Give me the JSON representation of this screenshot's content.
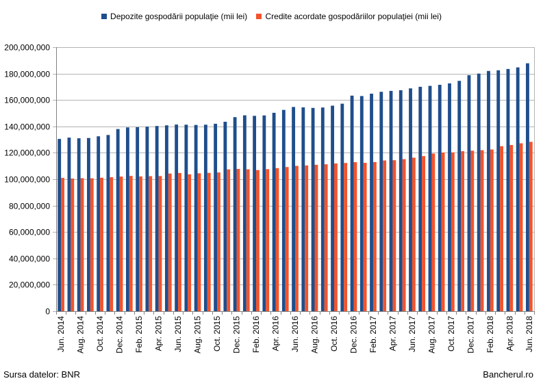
{
  "legend": {
    "deposits_label": "Depozite gospodării populaţie (mii lei)",
    "credits_label": "Credite acordate gospodăriilor populaţiei (mii lei)"
  },
  "footer": {
    "source": "Sursa datelor: BNR",
    "brand": "Bancherul.ro"
  },
  "colors": {
    "deposits": "#1F4E8C",
    "credits": "#F2542D",
    "grid": "#B3B3B3",
    "axis": "#808080"
  },
  "chart_data": {
    "type": "bar",
    "categories": [
      "Jun. 2014",
      "Jul. 2014",
      "Aug. 2014",
      "Sep. 2014",
      "Oct. 2014",
      "Nov. 2014",
      "Dec. 2014",
      "Jan. 2015",
      "Feb. 2015",
      "Mar. 2015",
      "Apr. 2015",
      "May 2015",
      "Jun. 2015",
      "Jul. 2015",
      "Aug. 2015",
      "Sep. 2015",
      "Oct. 2015",
      "Nov. 2015",
      "Dec. 2015",
      "Jan. 2016",
      "Feb. 2016",
      "Mar. 2016",
      "Apr. 2016",
      "May 2016",
      "Jun. 2016",
      "Jul. 2016",
      "Aug. 2016",
      "Sep. 2016",
      "Oct. 2016",
      "Nov. 2016",
      "Dec. 2016",
      "Jan. 2017",
      "Feb. 2017",
      "Mar. 2017",
      "Apr. 2017",
      "May 2017",
      "Jun. 2017",
      "Jul. 2017",
      "Aug. 2017",
      "Sep. 2017",
      "Oct. 2017",
      "Nov. 2017",
      "Dec. 2017",
      "Jan. 2018",
      "Feb. 2018",
      "Mar. 2018",
      "Apr. 2018",
      "May 2018",
      "Jun. 2018"
    ],
    "tick_labels": [
      "Jun. 2014",
      "Aug. 2014",
      "Oct. 2014",
      "Dec. 2014",
      "Feb. 2015",
      "Apr. 2015",
      "Jun. 2015",
      "Aug. 2015",
      "Oct. 2015",
      "Dec. 2015",
      "Feb. 2016",
      "Apr. 2016",
      "Jun. 2016",
      "Aug. 2016",
      "Oct. 2016",
      "Dec. 2016",
      "Feb. 2017",
      "Apr. 2017",
      "Jun. 2017",
      "Aug. 2017",
      "Oct. 2017",
      "Dec. 2017",
      "Feb. 2018",
      "Apr. 2018",
      "Jun. 2018"
    ],
    "series": [
      {
        "name": "Depozite gospodării populaţie (mii lei)",
        "values": [
          130500000,
          131500000,
          131000000,
          131200000,
          132500000,
          133500000,
          138000000,
          139200000,
          139400000,
          139800000,
          140300000,
          140800000,
          141400000,
          141300000,
          141100000,
          141300000,
          142000000,
          143500000,
          147000000,
          148400000,
          148000000,
          148300000,
          150300000,
          152500000,
          154700000,
          154400000,
          154000000,
          154300000,
          155700000,
          157200000,
          163300000,
          163000000,
          164800000,
          166200000,
          166900000,
          167400000,
          168800000,
          170000000,
          170700000,
          171500000,
          172600000,
          174500000,
          178800000,
          180000000,
          182000000,
          182500000,
          183500000,
          184700000,
          187800000
        ]
      },
      {
        "name": "Credite acordate gospodăriilor populaţiei (mii lei)",
        "values": [
          101000000,
          100500000,
          100800000,
          100700000,
          101100000,
          101500000,
          102000000,
          102500000,
          102100000,
          102300000,
          102400000,
          104300000,
          104700000,
          103700000,
          104500000,
          104800000,
          105100000,
          107400000,
          107800000,
          107500000,
          106900000,
          107600000,
          108400000,
          109200000,
          110100000,
          110400000,
          110900000,
          111300000,
          111900000,
          112300000,
          112900000,
          112400000,
          113000000,
          114200000,
          114400000,
          115200000,
          116300000,
          117500000,
          119400000,
          120200000,
          120300000,
          121200000,
          121600000,
          122000000,
          122500000,
          125000000,
          125900000,
          127200000,
          128300000
        ]
      }
    ],
    "ylim": [
      0,
      200000000
    ],
    "yticks": [
      0,
      20000000,
      40000000,
      60000000,
      80000000,
      100000000,
      120000000,
      140000000,
      160000000,
      180000000,
      200000000
    ],
    "grid": true,
    "legend_position": "top"
  }
}
